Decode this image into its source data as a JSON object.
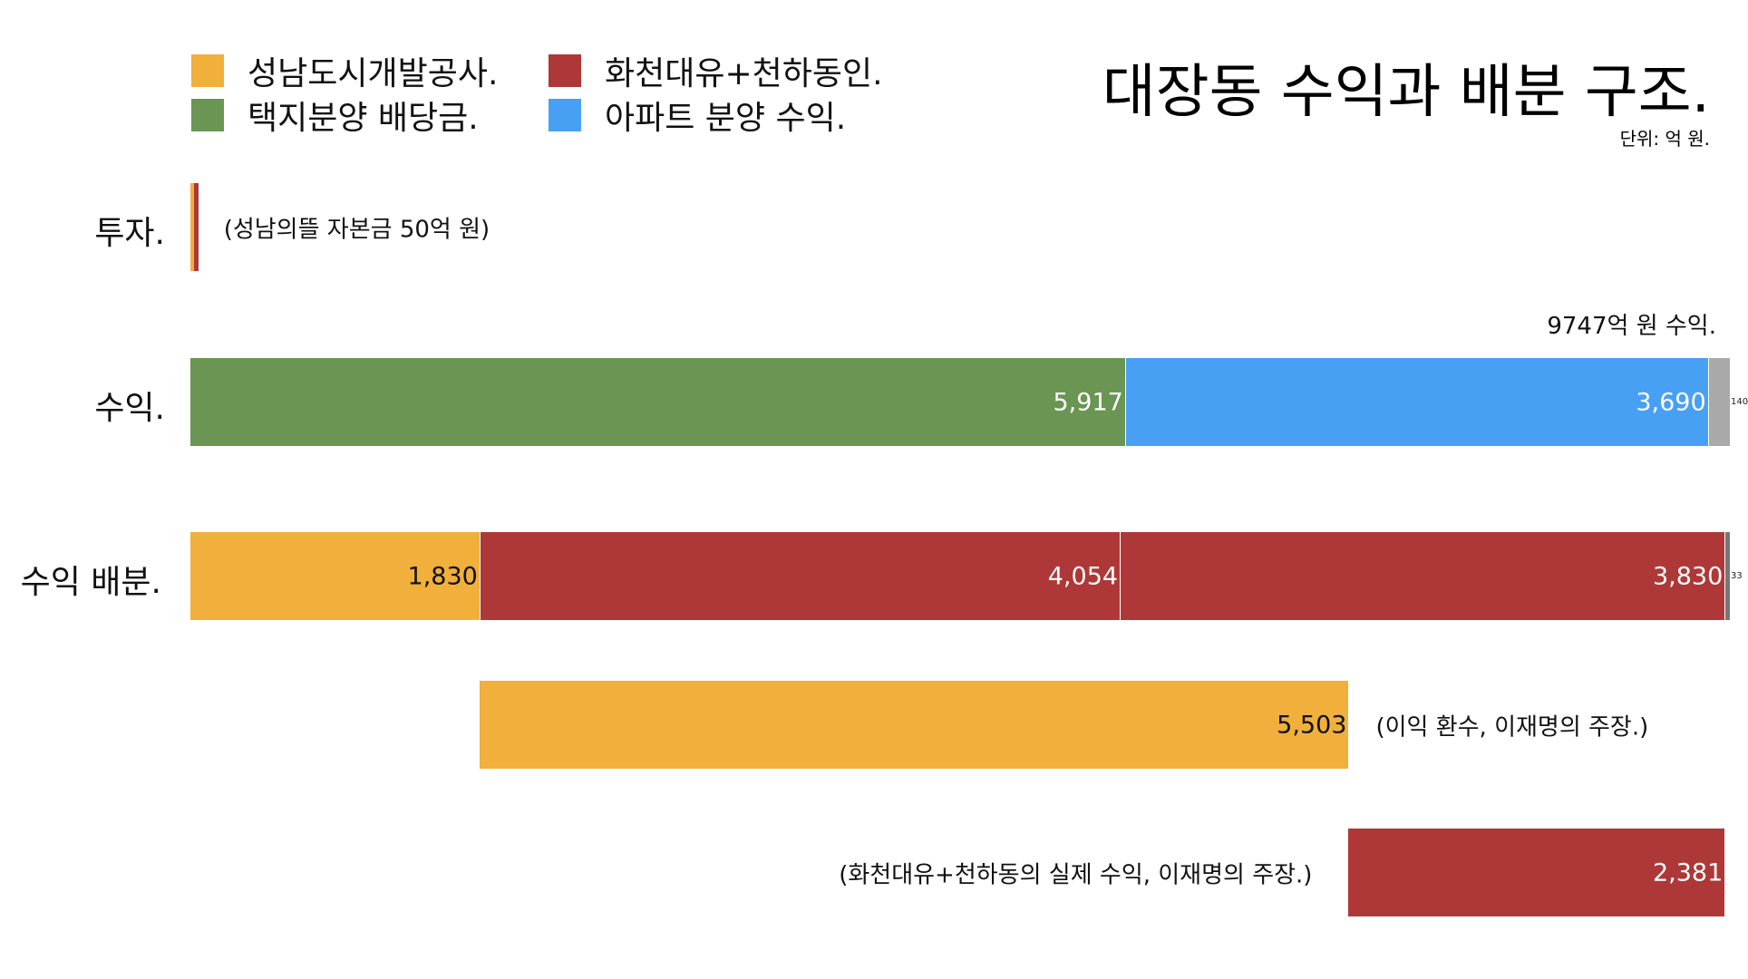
{
  "title": "대장동 수익과 배분 구조.",
  "unit": "단위: 억 원.",
  "legend": [
    {
      "label": "성남도시개발공사.",
      "color": "#f0b03b"
    },
    {
      "label": "화천대유+천하동인.",
      "color": "#ae3838"
    },
    {
      "label": "택지분양 배당금.",
      "color": "#6b9553"
    },
    {
      "label": "아파트 분양 수익.",
      "color": "#48a0f4"
    }
  ],
  "chart_data": {
    "type": "bar",
    "orientation": "horizontal",
    "stacked": true,
    "title": "대장동 수익과 배분 구조.",
    "unit": "단위: 억 원.",
    "xlim": [
      0,
      9747
    ],
    "grid": false,
    "legend_position": "top-left",
    "rows": [
      {
        "label": "투자.",
        "note": "(성남의뜰 자본금 50억 원)",
        "segments": [
          {
            "series": "성남도시개발공사.",
            "value": 25,
            "color": "#f0b03b",
            "show_label": false
          },
          {
            "series": "화천대유+천하동인.",
            "value": 25,
            "color": "#ae3838",
            "show_label": false
          }
        ]
      },
      {
        "label": "수익.",
        "total_note": "9747억 원 수익.",
        "segments": [
          {
            "series": "택지분양 배당금.",
            "value": 5917,
            "display": "5,917",
            "color": "#6b9553",
            "text_color": "#ffffff"
          },
          {
            "series": "아파트 분양 수익.",
            "value": 3690,
            "display": "3,690",
            "color": "#48a0f4",
            "text_color": "#ffffff"
          },
          {
            "series": "",
            "value": 140,
            "display": "140",
            "color": "#a9a9a9",
            "tiny": true
          }
        ]
      },
      {
        "label": "수익 배분.",
        "segments": [
          {
            "series": "성남도시개발공사.",
            "value": 1830,
            "display": "1,830",
            "color": "#f0b03b",
            "text_color": "#111111"
          },
          {
            "series": "화천대유+천하동인.",
            "value": 4054,
            "display": "4,054",
            "color": "#ae3838",
            "text_color": "#ffffff"
          },
          {
            "series": "화천대유+천하동인.",
            "value": 3830,
            "display": "3,830",
            "color": "#ae3838",
            "text_color": "#ffffff"
          },
          {
            "series": "",
            "value": 33,
            "display": "33",
            "color": "#777777",
            "tiny": true
          }
        ]
      },
      {
        "label": "",
        "offset": 1830,
        "note": "(이익 환수, 이재명의 주장.)",
        "note_side": "right",
        "segments": [
          {
            "series": "성남도시개발공사.",
            "value": 5503,
            "display": "5,503",
            "color": "#f0b03b",
            "text_color": "#111111"
          }
        ]
      },
      {
        "label": "",
        "offset": 7333,
        "note": "(화천대유+천하동의 실제 수익, 이재명의 주장.)",
        "note_side": "left",
        "segments": [
          {
            "series": "화천대유+천하동인.",
            "value": 2381,
            "display": "2,381",
            "color": "#ae3838",
            "text_color": "#ffffff"
          }
        ]
      }
    ]
  }
}
